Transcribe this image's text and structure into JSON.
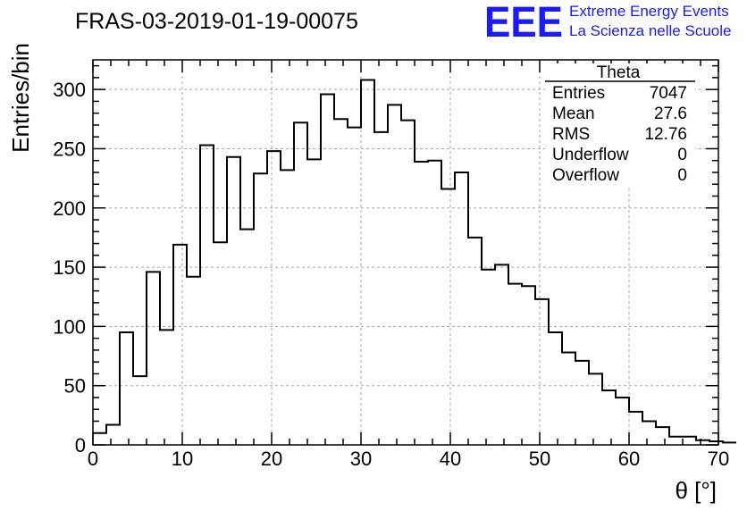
{
  "logo": {
    "mark": "EEE",
    "line1": "Extreme Energy Events",
    "line2": "La Scienza nelle Scuole",
    "color": "#1a1aff"
  },
  "stats_box": {
    "title": "Theta",
    "rows": [
      {
        "label": "Entries",
        "value": "7047"
      },
      {
        "label": "Mean",
        "value": "27.6"
      },
      {
        "label": "RMS",
        "value": "12.76"
      },
      {
        "label": "Underflow",
        "value": "0"
      },
      {
        "label": "Overflow",
        "value": "0"
      }
    ]
  },
  "chart_data": {
    "type": "bar",
    "style": "step-histogram",
    "title": "FRAS-03-2019-01-19-00075",
    "xlabel": "θ [°]",
    "ylabel": "Entries/bin",
    "xlim": [
      0,
      70
    ],
    "ylim": [
      0,
      325
    ],
    "xticks": [
      0,
      10,
      20,
      30,
      40,
      50,
      60,
      70
    ],
    "yticks": [
      0,
      50,
      100,
      150,
      200,
      250,
      300
    ],
    "grid": true,
    "bin_width": 1.5,
    "bin_start": 0,
    "values": [
      10,
      17,
      95,
      58,
      146,
      97,
      169,
      142,
      253,
      171,
      243,
      182,
      229,
      248,
      232,
      272,
      241,
      296,
      275,
      268,
      308,
      264,
      287,
      274,
      239,
      240,
      216,
      230,
      175,
      148,
      152,
      136,
      134,
      123,
      95,
      78,
      71,
      60,
      46,
      40,
      28,
      20,
      15,
      7,
      7,
      4,
      3,
      2
    ],
    "line_color": "#000000"
  }
}
